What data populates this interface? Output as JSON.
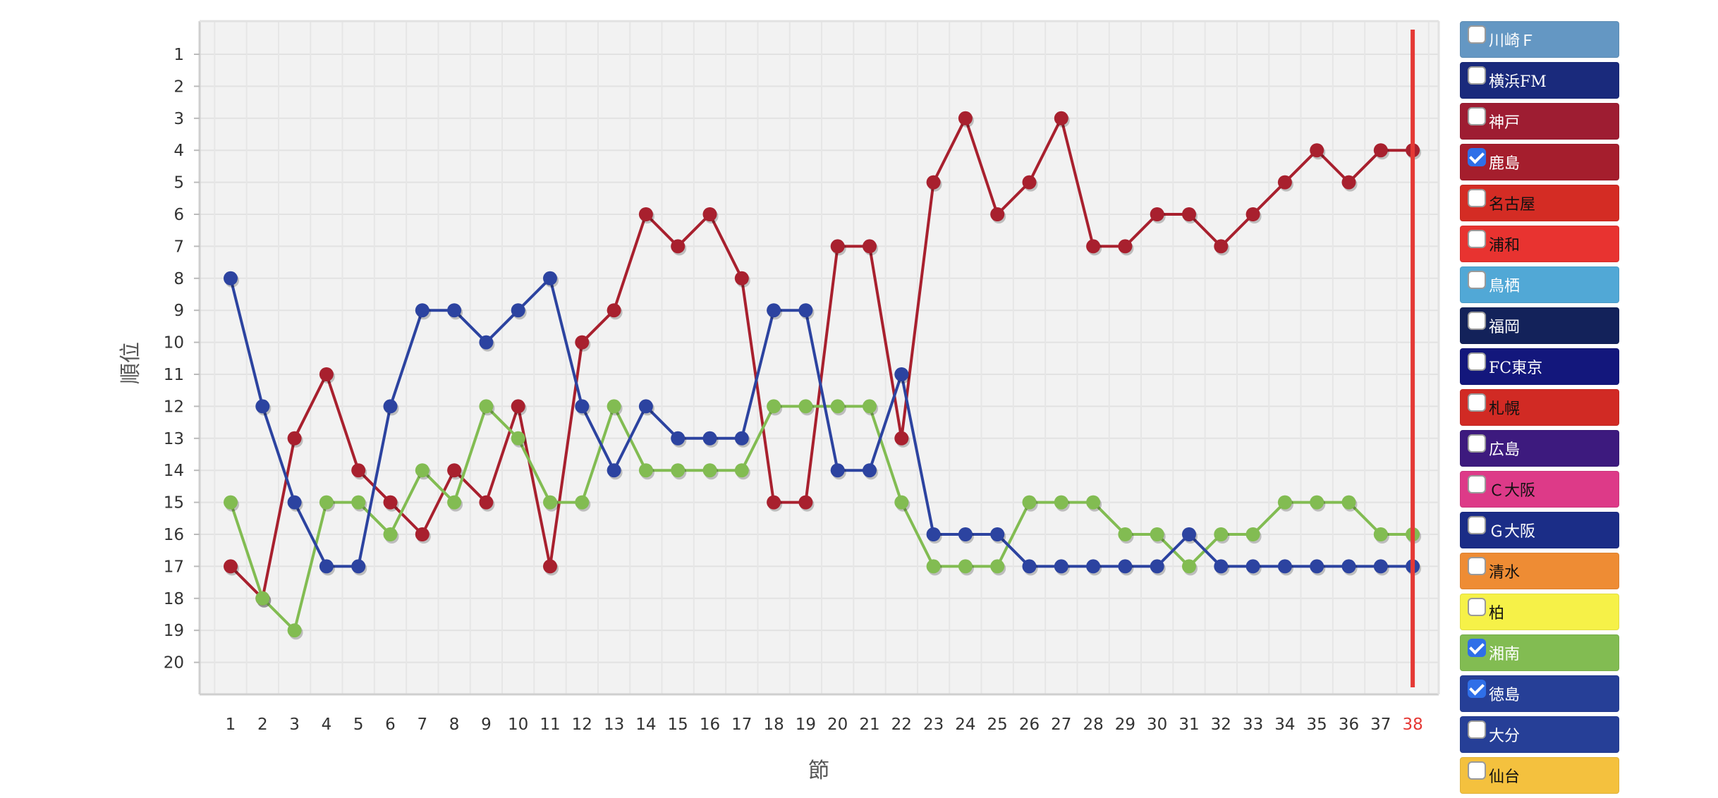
{
  "chart_data": {
    "type": "line",
    "title": "",
    "xlabel": "節",
    "ylabel": "順位",
    "x": [
      1,
      2,
      3,
      4,
      5,
      6,
      7,
      8,
      9,
      10,
      11,
      12,
      13,
      14,
      15,
      16,
      17,
      18,
      19,
      20,
      21,
      22,
      23,
      24,
      25,
      26,
      27,
      28,
      29,
      30,
      31,
      32,
      33,
      34,
      35,
      36,
      37,
      38
    ],
    "y_ticks": [
      1,
      2,
      3,
      4,
      5,
      6,
      7,
      8,
      9,
      10,
      11,
      12,
      13,
      14,
      15,
      16,
      17,
      18,
      19,
      20
    ],
    "ylim": [
      0,
      21
    ],
    "y_reversed": true,
    "grid": true,
    "current_round": 38,
    "current_round_color": "#e53935",
    "series": [
      {
        "name": "鹿島",
        "color": "#a8202e",
        "values": [
          17,
          18,
          13,
          11,
          14,
          15,
          16,
          14,
          15,
          12,
          17,
          10,
          9,
          6,
          7,
          6,
          8,
          15,
          15,
          7,
          7,
          13,
          5,
          3,
          6,
          5,
          3,
          7,
          7,
          6,
          6,
          7,
          6,
          5,
          4,
          5,
          4,
          4
        ]
      },
      {
        "name": "湘南",
        "color": "#82bc52",
        "values": [
          15,
          18,
          19,
          15,
          15,
          16,
          14,
          15,
          12,
          13,
          15,
          15,
          12,
          14,
          14,
          14,
          14,
          12,
          12,
          12,
          12,
          15,
          17,
          17,
          17,
          15,
          15,
          15,
          16,
          16,
          17,
          16,
          16,
          15,
          15,
          15,
          16,
          16
        ]
      },
      {
        "name": "徳島",
        "color": "#2c43a0",
        "values": [
          8,
          12,
          15,
          17,
          17,
          12,
          9,
          9,
          10,
          9,
          8,
          12,
          14,
          12,
          13,
          13,
          13,
          9,
          9,
          14,
          14,
          11,
          16,
          16,
          16,
          17,
          17,
          17,
          17,
          17,
          16,
          17,
          17,
          17,
          17,
          17,
          17,
          17
        ]
      }
    ]
  },
  "legend": [
    {
      "label": "川崎Ｆ",
      "bg": "#6497c3",
      "fg": "#ffffff",
      "checked": false
    },
    {
      "label": "横浜FM",
      "bg": "#1a2a7c",
      "fg": "#ffffff",
      "checked": false
    },
    {
      "label": "神戸",
      "bg": "#9e1d32",
      "fg": "#ffffff",
      "checked": false
    },
    {
      "label": "鹿島",
      "bg": "#a51e2d",
      "fg": "#ffffff",
      "checked": true
    },
    {
      "label": "名古屋",
      "bg": "#d42c24",
      "fg": "#111111",
      "checked": false
    },
    {
      "label": "浦和",
      "bg": "#e83330",
      "fg": "#111111",
      "checked": false
    },
    {
      "label": "鳥栖",
      "bg": "#51a8d6",
      "fg": "#ffffff",
      "checked": false
    },
    {
      "label": "福岡",
      "bg": "#13225a",
      "fg": "#ffffff",
      "checked": false
    },
    {
      "label": "FC東京",
      "bg": "#13177c",
      "fg": "#ffffff",
      "checked": false
    },
    {
      "label": "札幌",
      "bg": "#d12a24",
      "fg": "#111111",
      "checked": false
    },
    {
      "label": "広島",
      "bg": "#3d1a7e",
      "fg": "#ffffff",
      "checked": false
    },
    {
      "label": "Ｃ大阪",
      "bg": "#dd3a88",
      "fg": "#111111",
      "checked": false
    },
    {
      "label": "Ｇ大阪",
      "bg": "#1b2d87",
      "fg": "#ffffff",
      "checked": false
    },
    {
      "label": "清水",
      "bg": "#ee8c34",
      "fg": "#111111",
      "checked": false
    },
    {
      "label": "柏",
      "bg": "#f6f148",
      "fg": "#111111",
      "checked": false
    },
    {
      "label": "湘南",
      "bg": "#82bc52",
      "fg": "#ffffff",
      "checked": true
    },
    {
      "label": "徳島",
      "bg": "#263f97",
      "fg": "#ffffff",
      "checked": true
    },
    {
      "label": "大分",
      "bg": "#263f97",
      "fg": "#ffffff",
      "checked": false
    },
    {
      "label": "仙台",
      "bg": "#f4c13e",
      "fg": "#111111",
      "checked": false
    }
  ]
}
